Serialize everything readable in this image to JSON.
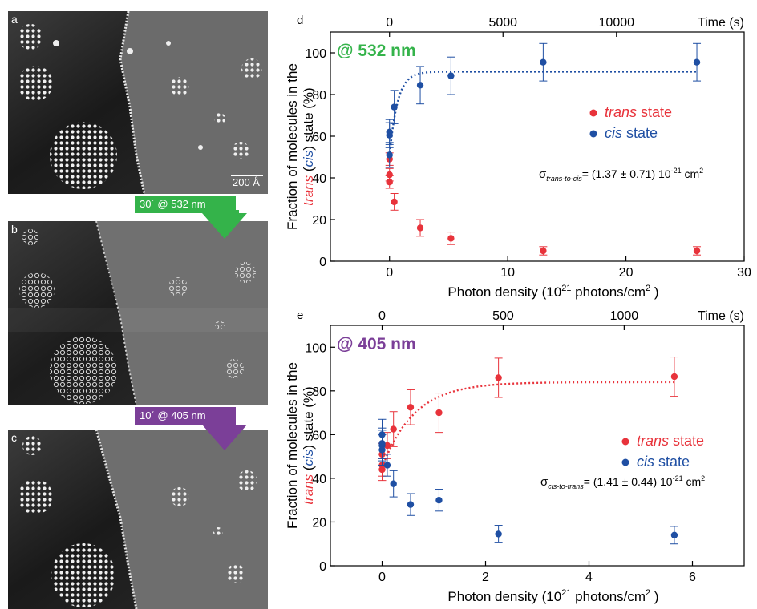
{
  "stm_panels": [
    {
      "letter": "a",
      "scalebar_label": "200 Å"
    },
    {
      "letter": "b"
    },
    {
      "letter": "c"
    }
  ],
  "arrows": [
    {
      "label": "30´ @ 532 nm",
      "color": "#34b34a"
    },
    {
      "label": "10´ @ 405 nm",
      "color": "#7b3f98"
    }
  ],
  "colors": {
    "trans": "#e8333b",
    "cis": "#1f4fa3",
    "green": "#34b34a",
    "purple": "#7b3f98"
  },
  "chart_data": [
    {
      "panel": "d",
      "type": "scatter",
      "label": "@ 532 nm",
      "xlabel": "Photon density (10²¹ photons/cm²)",
      "xlabel_parts": {
        "pre": "Photon density (10",
        "sup1": "21",
        "mid": " photons/cm",
        "sup2": "2",
        "post": " )"
      },
      "ylabel_line1": "Fraction of molecules in the",
      "ylabel_line2": {
        "trans": "trans",
        "open": " (",
        "cis": "cis",
        "close": ") state (%)"
      },
      "xlim": [
        -5,
        30
      ],
      "ylim": [
        0,
        110
      ],
      "xticks": [
        0,
        10,
        20,
        30
      ],
      "yticks": [
        0,
        20,
        40,
        60,
        80,
        100
      ],
      "top_axis": {
        "label": "Time (s)",
        "ticks": [
          {
            "label": "0",
            "x": 0
          },
          {
            "label": "5000",
            "x": 9.6
          },
          {
            "label": "10000",
            "x": 19.2
          }
        ]
      },
      "series": [
        {
          "name": "trans state",
          "color": "#e8333b",
          "points": [
            [
              0,
              49,
              3
            ],
            [
              0,
              41.5,
              3
            ],
            [
              0,
              38,
              3
            ],
            [
              0.4,
              28.5,
              4
            ],
            [
              2.6,
              16,
              4
            ],
            [
              5.2,
              11,
              3
            ],
            [
              13,
              5,
              2
            ],
            [
              26,
              5,
              2
            ]
          ]
        },
        {
          "name": "cis state",
          "color": "#1f4fa3",
          "points": [
            [
              0,
              51,
              6
            ],
            [
              0,
              60.5,
              6
            ],
            [
              0,
              62,
              6
            ],
            [
              0.4,
              74,
              8
            ],
            [
              2.6,
              84.5,
              9
            ],
            [
              5.2,
              89,
              9
            ],
            [
              13,
              95.5,
              9
            ],
            [
              26,
              95.5,
              9
            ]
          ]
        }
      ],
      "fit": {
        "color": "#1f4fa3",
        "y0": 50,
        "yinf": 91,
        "rate": 1.5
      },
      "legend": [
        {
          "name_italic": "trans",
          "rest": " state",
          "color": "#e8333b"
        },
        {
          "name_italic": "cis",
          "rest": " state",
          "color": "#1f4fa3"
        }
      ],
      "annotation": {
        "sigma": "σ",
        "sub": "trans-to-cis",
        "text": "= (1.37 ± 0.71) 10",
        "exp": "-21",
        "unit": " cm",
        "unit_exp": "2"
      }
    },
    {
      "panel": "e",
      "type": "scatter",
      "label": "@ 405 nm",
      "xlabel": "Photon density (10²¹ photons/cm²)",
      "xlabel_parts": {
        "pre": "Photon density (10",
        "sup1": "21",
        "mid": " photons/cm",
        "sup2": "2",
        "post": " )"
      },
      "ylabel_line1": "Fraction of molecules in the",
      "ylabel_line2": {
        "trans": "trans",
        "open": " (",
        "cis": "cis",
        "close": ") state (%)"
      },
      "xlim": [
        -1,
        7
      ],
      "ylim": [
        0,
        110
      ],
      "xticks": [
        0,
        2,
        4,
        6
      ],
      "yticks": [
        0,
        20,
        40,
        60,
        80,
        100
      ],
      "top_axis": {
        "label": "Time (s)",
        "ticks": [
          {
            "label": "0",
            "x": 0
          },
          {
            "label": "500",
            "x": 2.34
          },
          {
            "label": "1000",
            "x": 4.68
          }
        ]
      },
      "series": [
        {
          "name": "trans state",
          "color": "#e8333b",
          "points": [
            [
              0,
              44,
              5
            ],
            [
              0,
              46,
              5
            ],
            [
              0,
              51,
              5
            ],
            [
              0.1,
              55,
              6
            ],
            [
              0.22,
              62.5,
              8
            ],
            [
              0.55,
              72.5,
              8
            ],
            [
              1.1,
              70,
              9
            ],
            [
              2.25,
              86,
              9
            ],
            [
              5.65,
              86.5,
              9
            ]
          ]
        },
        {
          "name": "cis state",
          "color": "#1f4fa3",
          "points": [
            [
              0,
              55,
              7
            ],
            [
              0,
              56,
              7
            ],
            [
              0,
              53,
              7
            ],
            [
              0,
              60,
              7
            ],
            [
              0.1,
              46,
              5
            ],
            [
              0.22,
              37.5,
              6
            ],
            [
              0.55,
              28,
              5
            ],
            [
              1.1,
              30,
              5
            ],
            [
              2.25,
              14.5,
              4
            ],
            [
              5.65,
              14,
              4
            ]
          ]
        }
      ],
      "fit": {
        "color": "#e8333b",
        "y0": 45,
        "yinf": 84,
        "rate": 1.6
      },
      "legend": [
        {
          "name_italic": "trans",
          "rest": " state",
          "color": "#e8333b"
        },
        {
          "name_italic": "cis",
          "rest": " state",
          "color": "#1f4fa3"
        }
      ],
      "annotation": {
        "sigma": "σ",
        "sub": "cis-to-trans",
        "text": "= (1.41 ± 0.44) 10",
        "exp": "-21",
        "unit": " cm",
        "unit_exp": "2"
      }
    }
  ]
}
